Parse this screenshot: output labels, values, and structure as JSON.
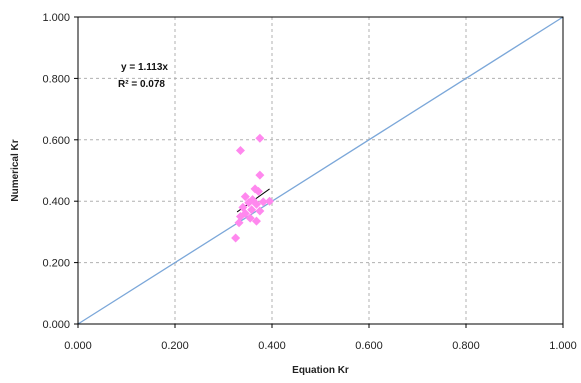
{
  "chart_data": {
    "type": "scatter",
    "xlabel": "Equation Kr",
    "ylabel": "Numerical Kr",
    "xlim": [
      0,
      1
    ],
    "ylim": [
      0,
      1
    ],
    "x_ticks": [
      "0.000",
      "0.200",
      "0.400",
      "0.600",
      "0.800",
      "1.000"
    ],
    "y_ticks": [
      "0.000",
      "0.200",
      "0.400",
      "0.600",
      "0.800",
      "1.000"
    ],
    "grid": true,
    "legend": "none",
    "annotations": {
      "equation": "y = 1.113x",
      "r_squared": "R² = 0.078"
    },
    "series": [
      {
        "kind": "points",
        "marker": "diamond",
        "color": "#ff88ee",
        "points": [
          [
            0.335,
            0.565
          ],
          [
            0.375,
            0.605
          ],
          [
            0.375,
            0.485
          ],
          [
            0.365,
            0.44
          ],
          [
            0.372,
            0.432
          ],
          [
            0.345,
            0.415
          ],
          [
            0.36,
            0.405
          ],
          [
            0.352,
            0.395
          ],
          [
            0.382,
            0.398
          ],
          [
            0.395,
            0.4
          ],
          [
            0.368,
            0.39
          ],
          [
            0.34,
            0.38
          ],
          [
            0.358,
            0.372
          ],
          [
            0.375,
            0.368
          ],
          [
            0.345,
            0.36
          ],
          [
            0.335,
            0.35
          ],
          [
            0.355,
            0.345
          ],
          [
            0.332,
            0.33
          ],
          [
            0.368,
            0.335
          ],
          [
            0.325,
            0.28
          ]
        ]
      },
      {
        "kind": "line",
        "color": "#7ba7d9",
        "points": [
          [
            0,
            0
          ],
          [
            1,
            1
          ]
        ]
      },
      {
        "kind": "line",
        "color": "#000000",
        "points": [
          [
            0.328,
            0.365
          ],
          [
            0.395,
            0.44
          ]
        ]
      }
    ]
  }
}
